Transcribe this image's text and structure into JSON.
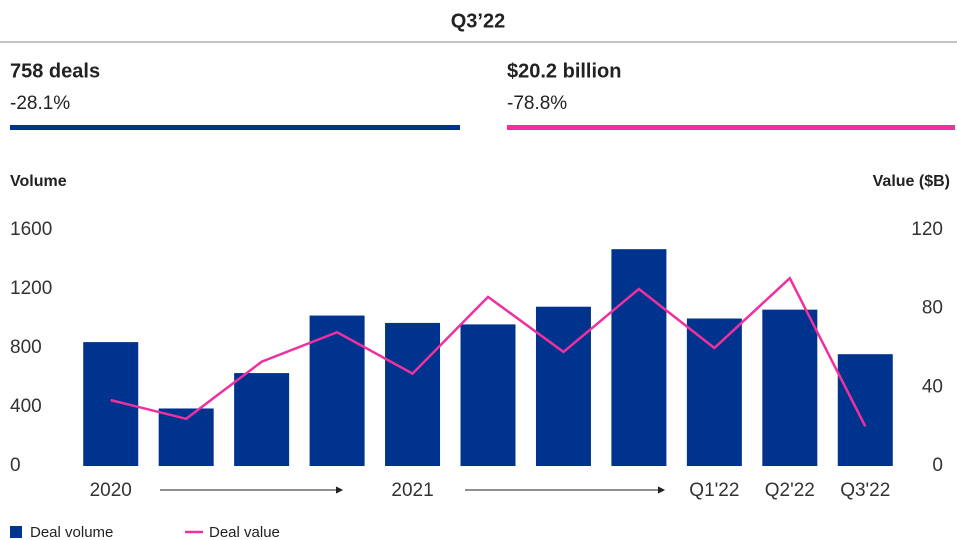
{
  "chart_data": {
    "type": "bar",
    "title": "Q3’22",
    "kpis": [
      {
        "label": "758 deals",
        "change": "-28.1%",
        "color": "#00338d"
      },
      {
        "label": "$20.2 billion",
        "change": "-78.8%",
        "color": "#f0309e"
      }
    ],
    "y_label": "Volume",
    "y2_label": "Value ($B)",
    "categories": [
      "2020",
      null,
      null,
      null,
      "2021",
      null,
      null,
      null,
      "Q1'22",
      "Q2'22",
      "Q3'22"
    ],
    "series": [
      {
        "name": "Deal volume",
        "type": "bar",
        "color": "#00338d",
        "axis": "y",
        "values": [
          840,
          390,
          630,
          1020,
          970,
          960,
          1080,
          1470,
          1000,
          1060,
          758
        ]
      },
      {
        "name": "Deal value",
        "type": "line",
        "color": "#f0309e",
        "axis": "y2",
        "values": [
          33.5,
          24,
          53,
          68,
          47,
          86,
          58,
          90,
          60,
          95.5,
          20.2
        ]
      }
    ],
    "ylim": [
      0,
      1600
    ],
    "yticks": [
      0,
      400,
      800,
      1200,
      1600
    ],
    "y2lim": [
      0,
      120
    ],
    "y2ticks": [
      0,
      40,
      80,
      120
    ]
  }
}
